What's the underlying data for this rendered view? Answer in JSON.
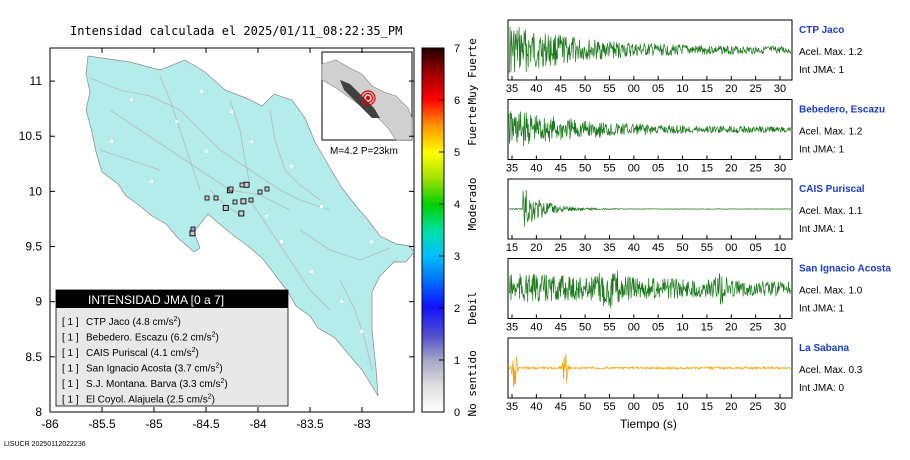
{
  "header": {
    "title": "Intensidad calculada el 2025/01/11_08:22:35_PM"
  },
  "footer": {
    "id": "LISUCR 20250112022236"
  },
  "map": {
    "x_ticks": [
      "-86",
      "-85.5",
      "-85",
      "-84.5",
      "-84",
      "-83.5",
      "-83"
    ],
    "y_ticks": [
      "11",
      "10.5",
      "10",
      "9.5",
      "9",
      "8.5",
      "8"
    ],
    "inset_label": "M=4.2 P=23km",
    "land_color": "#b4ecec",
    "station_color": "#c8c8c8"
  },
  "colorbar": {
    "ticks": [
      "0",
      "1",
      "2",
      "3",
      "4",
      "5",
      "6",
      "7"
    ],
    "labels": [
      "No sentido",
      "Debil",
      "Moderado",
      "Fuerte",
      "Muy Fuerte"
    ]
  },
  "legend": {
    "title": "INTENSIDAD JMA [0 a 7]",
    "entries": [
      {
        "bracket": "[ 1 ]",
        "text": "CTP Jaco (4.8 cm/s",
        "sup": "2",
        "tail": ")"
      },
      {
        "bracket": "[ 1 ]",
        "text": "Bebedero. Escazu (6.2 cm/s",
        "sup": "2",
        "tail": ")"
      },
      {
        "bracket": "[ 1 ]",
        "text": "CAIS Puriscal (4.1 cm/s",
        "sup": "2",
        "tail": ")"
      },
      {
        "bracket": "[ 1 ]",
        "text": "San Ignacio Acosta (3.7 cm/s",
        "sup": "2",
        "tail": ")"
      },
      {
        "bracket": "[ 1 ]",
        "text": "S.J. Montana. Barva (3.3 cm/s",
        "sup": "2",
        "tail": ")"
      },
      {
        "bracket": "[ 1 ]",
        "text": "El Coyol. Alajuela (2.5 cm/s",
        "sup": "2",
        "tail": ")"
      }
    ]
  },
  "waveforms": {
    "xlabel": "Tiempo (s)",
    "panels": [
      {
        "station": "CTP Jaco",
        "acel": "Acel. Max. 1.2",
        "int": "Int JMA: 1",
        "color": "#1a7a1a",
        "ticks": [
          "35",
          "40",
          "45",
          "50",
          "55",
          "00",
          "05",
          "10",
          "15",
          "20",
          "25",
          "30"
        ]
      },
      {
        "station": "Bebedero, Escazu",
        "acel": "Acel. Max. 1.2",
        "int": "Int JMA: 1",
        "color": "#1a7a1a",
        "ticks": [
          "35",
          "40",
          "45",
          "50",
          "55",
          "00",
          "05",
          "10",
          "15",
          "20",
          "25",
          "30"
        ]
      },
      {
        "station": "CAIS Puriscal",
        "acel": "Acel. Max. 1.1",
        "int": "Int JMA: 1",
        "color": "#1a7a1a",
        "ticks": [
          "15",
          "20",
          "25",
          "30",
          "35",
          "40",
          "45",
          "50",
          "55",
          "00",
          "05",
          "10"
        ]
      },
      {
        "station": "San Ignacio Acosta",
        "acel": "Acel. Max. 1.0",
        "int": "Int JMA: 1",
        "color": "#1a7a1a",
        "ticks": [
          "35",
          "40",
          "45",
          "50",
          "55",
          "00",
          "05",
          "10",
          "15",
          "20",
          "25",
          "30"
        ]
      },
      {
        "station": "La Sabana",
        "acel": "Acel. Max. 0.3",
        "int": "Int JMA: 0",
        "color": "#f0a500",
        "ticks": [
          "35",
          "40",
          "45",
          "50",
          "55",
          "00",
          "05",
          "10",
          "15",
          "20",
          "25",
          "30"
        ]
      }
    ]
  },
  "chart_data": [
    {
      "type": "map",
      "title": "Intensidad calculada el 2025/01/11_08:22:35_PM",
      "x_range": [
        -86,
        -82.5
      ],
      "y_range": [
        8,
        11.3
      ],
      "magnitude": "M=4.2",
      "depth": "P=23km",
      "stations": [
        {
          "name": "CTP Jaco",
          "lon": -84.63,
          "lat": 9.62,
          "intensity": 1
        },
        {
          "name": "Bebedero, Escazu",
          "lon": -84.14,
          "lat": 9.91,
          "intensity": 1
        },
        {
          "name": "CAIS Puriscal",
          "lon": -84.31,
          "lat": 9.85,
          "intensity": 1
        },
        {
          "name": "San Ignacio Acosta",
          "lon": -84.16,
          "lat": 9.8,
          "intensity": 1
        },
        {
          "name": "S.J. Montana. Barva",
          "lon": -84.11,
          "lat": 10.06,
          "intensity": 1
        },
        {
          "name": "El Coyol. Alajuela",
          "lon": -84.27,
          "lat": 10.01,
          "intensity": 1
        }
      ]
    },
    {
      "type": "line",
      "xlabel": "Tiempo (s)",
      "series": [
        {
          "name": "CTP Jaco",
          "peak_acceleration": 1.2,
          "jma_intensity": 1
        },
        {
          "name": "Bebedero, Escazu",
          "peak_acceleration": 1.2,
          "jma_intensity": 1
        },
        {
          "name": "CAIS Puriscal",
          "peak_acceleration": 1.1,
          "jma_intensity": 1
        },
        {
          "name": "San Ignacio Acosta",
          "peak_acceleration": 1.0,
          "jma_intensity": 1
        },
        {
          "name": "La Sabana",
          "peak_acceleration": 0.3,
          "jma_intensity": 0
        }
      ]
    }
  ]
}
